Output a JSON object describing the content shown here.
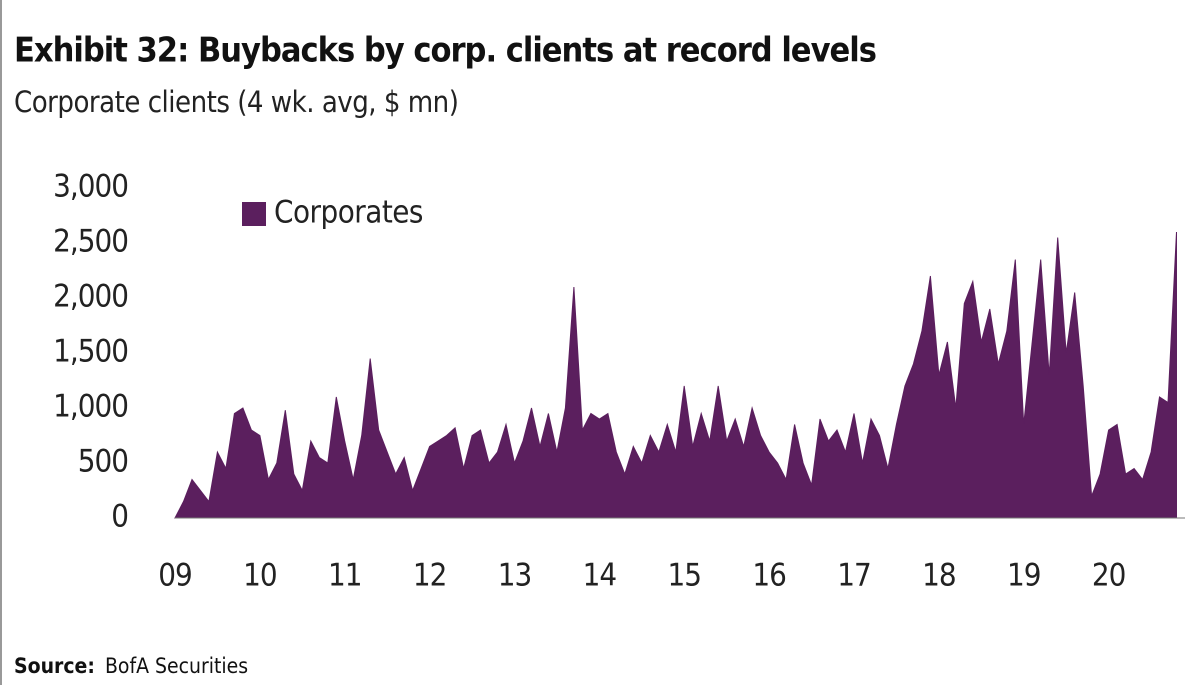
{
  "chart_data": {
    "type": "area",
    "title": "Exhibit 32: Buybacks by corp. clients at record levels",
    "subtitle": "Corporate clients (4 wk. avg, $ mn)",
    "source_label": "Source:",
    "source": "BofA Securities",
    "x": [
      2009.0,
      2009.1,
      2009.2,
      2009.3,
      2009.4,
      2009.5,
      2009.6,
      2009.7,
      2009.8,
      2009.9,
      2010.0,
      2010.1,
      2010.2,
      2010.3,
      2010.4,
      2010.5,
      2010.6,
      2010.7,
      2010.8,
      2010.9,
      2011.0,
      2011.1,
      2011.2,
      2011.3,
      2011.4,
      2011.5,
      2011.6,
      2011.7,
      2011.8,
      2011.9,
      2012.0,
      2012.1,
      2012.2,
      2012.3,
      2012.4,
      2012.5,
      2012.6,
      2012.7,
      2012.8,
      2012.9,
      2013.0,
      2013.1,
      2013.2,
      2013.3,
      2013.4,
      2013.5,
      2013.6,
      2013.7,
      2013.8,
      2013.9,
      2014.0,
      2014.1,
      2014.2,
      2014.3,
      2014.4,
      2014.5,
      2014.6,
      2014.7,
      2014.8,
      2014.9,
      2015.0,
      2015.1,
      2015.2,
      2015.3,
      2015.4,
      2015.5,
      2015.6,
      2015.7,
      2015.8,
      2015.9,
      2016.0,
      2016.1,
      2016.2,
      2016.3,
      2016.4,
      2016.5,
      2016.6,
      2016.7,
      2016.8,
      2016.9,
      2017.0,
      2017.1,
      2017.2,
      2017.3,
      2017.4,
      2017.5,
      2017.6,
      2017.7,
      2017.8,
      2017.9,
      2018.0,
      2018.1,
      2018.2,
      2018.3,
      2018.4,
      2018.5,
      2018.6,
      2018.7,
      2018.8,
      2018.9,
      2019.0,
      2019.1,
      2019.2,
      2019.3,
      2019.4,
      2019.5,
      2019.6,
      2019.7,
      2019.8,
      2019.9,
      2020.0,
      2020.1,
      2020.2,
      2020.3,
      2020.4,
      2020.5,
      2020.6,
      2020.7,
      2020.8
    ],
    "series": [
      {
        "name": "Corporates",
        "color": "#5b1f5e",
        "values": [
          0,
          150,
          350,
          250,
          150,
          600,
          450,
          950,
          1000,
          800,
          750,
          350,
          500,
          980,
          400,
          250,
          700,
          550,
          500,
          1100,
          700,
          350,
          750,
          1450,
          800,
          600,
          400,
          550,
          250,
          450,
          650,
          700,
          750,
          820,
          450,
          750,
          800,
          500,
          600,
          850,
          500,
          700,
          1000,
          650,
          950,
          600,
          1000,
          2100,
          800,
          950,
          900,
          950,
          600,
          400,
          650,
          500,
          750,
          600,
          850,
          600,
          1200,
          650,
          950,
          700,
          1200,
          700,
          900,
          650,
          1000,
          750,
          600,
          500,
          350,
          850,
          500,
          300,
          900,
          700,
          800,
          600,
          950,
          500,
          900,
          750,
          450,
          850,
          1200,
          1400,
          1700,
          2200,
          1300,
          1600,
          1000,
          1950,
          2150,
          1600,
          1900,
          1400,
          1700,
          2350,
          850,
          1600,
          2350,
          1300,
          2550,
          1500,
          2050,
          1200,
          200,
          400,
          800,
          850,
          400,
          450,
          350,
          600,
          1100,
          1050,
          2600
        ]
      }
    ],
    "xlim": [
      2009,
      2020.9
    ],
    "xticks": [
      {
        "value": 2009,
        "label": "09"
      },
      {
        "value": 2010,
        "label": "10"
      },
      {
        "value": 2011,
        "label": "11"
      },
      {
        "value": 2012,
        "label": "12"
      },
      {
        "value": 2013,
        "label": "13"
      },
      {
        "value": 2014,
        "label": "14"
      },
      {
        "value": 2015,
        "label": "15"
      },
      {
        "value": 2016,
        "label": "16"
      },
      {
        "value": 2017,
        "label": "17"
      },
      {
        "value": 2018,
        "label": "18"
      },
      {
        "value": 2019,
        "label": "19"
      },
      {
        "value": 2020,
        "label": "20"
      }
    ],
    "ylim": [
      0,
      3000
    ],
    "yticks": [
      0,
      500,
      {
        "value": 1000,
        "label": "1,000"
      },
      {
        "value": 1500,
        "label": "1,500"
      },
      {
        "value": 2000,
        "label": "2,000"
      },
      {
        "value": 2500,
        "label": "2,500"
      },
      {
        "value": 3000,
        "label": "3,000"
      }
    ],
    "grid": false,
    "legend": "top-left"
  }
}
